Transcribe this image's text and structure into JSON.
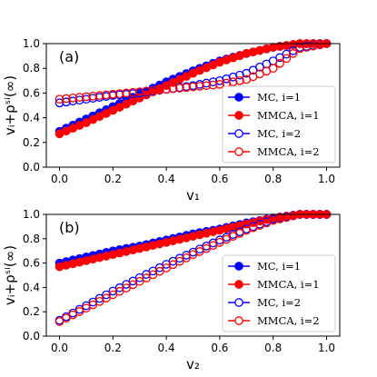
{
  "chart_data": [
    {
      "type": "scatter",
      "panel_label": "(a)",
      "xlabel": "v₁",
      "ylabel": "vᵢ+ρˢⁱ(∞)",
      "xlim": [
        0,
        1
      ],
      "ylim": [
        0,
        1
      ],
      "xticks": [
        "0.0",
        "0.2",
        "0.4",
        "0.6",
        "0.8",
        "1.0"
      ],
      "yticks": [
        "0.0",
        "0.2",
        "0.4",
        "0.6",
        "0.8",
        "1.0"
      ],
      "legend_position": "lower-right",
      "grid": false,
      "series": [
        {
          "name": "MC, i=1",
          "color": "#0000ff",
          "filled": true,
          "x": [
            0.0,
            0.1,
            0.2,
            0.3,
            0.4,
            0.5,
            0.6,
            0.7,
            0.8,
            0.9,
            1.0
          ],
          "y": [
            0.29,
            0.39,
            0.49,
            0.59,
            0.69,
            0.78,
            0.86,
            0.92,
            0.97,
            1.0,
            1.0
          ]
        },
        {
          "name": "MMCA, i=1",
          "color": "#ff0000",
          "filled": true,
          "x": [
            0.0,
            0.1,
            0.2,
            0.3,
            0.4,
            0.5,
            0.6,
            0.7,
            0.8,
            0.9,
            1.0
          ],
          "y": [
            0.27,
            0.36,
            0.46,
            0.56,
            0.66,
            0.76,
            0.85,
            0.92,
            0.97,
            1.0,
            1.0
          ]
        },
        {
          "name": "MC, i=2",
          "color": "#0000ff",
          "filled": false,
          "x": [
            0.0,
            0.1,
            0.2,
            0.3,
            0.4,
            0.5,
            0.6,
            0.7,
            0.8,
            0.9,
            1.0
          ],
          "y": [
            0.52,
            0.55,
            0.58,
            0.6,
            0.63,
            0.66,
            0.7,
            0.76,
            0.86,
            0.97,
            1.0
          ]
        },
        {
          "name": "MMCA, i=2",
          "color": "#ff0000",
          "filled": false,
          "x": [
            0.0,
            0.1,
            0.2,
            0.3,
            0.4,
            0.5,
            0.6,
            0.7,
            0.8,
            0.9,
            1.0
          ],
          "y": [
            0.55,
            0.57,
            0.59,
            0.61,
            0.63,
            0.65,
            0.67,
            0.71,
            0.8,
            0.96,
            1.0
          ]
        }
      ]
    },
    {
      "type": "scatter",
      "panel_label": "(b)",
      "xlabel": "v₂",
      "ylabel": "vᵢ+ρˢⁱ(∞)",
      "xlim": [
        0,
        1
      ],
      "ylim": [
        0,
        1
      ],
      "xticks": [
        "0.0",
        "0.2",
        "0.4",
        "0.6",
        "0.8",
        "1.0"
      ],
      "yticks": [
        "0.0",
        "0.2",
        "0.4",
        "0.6",
        "0.8",
        "1.0"
      ],
      "legend_position": "lower-right",
      "grid": false,
      "series": [
        {
          "name": "MC, i=1",
          "color": "#0000ff",
          "filled": true,
          "x": [
            0.0,
            0.1,
            0.2,
            0.3,
            0.4,
            0.5,
            0.6,
            0.7,
            0.8,
            0.9,
            1.0
          ],
          "y": [
            0.6,
            0.65,
            0.7,
            0.74,
            0.79,
            0.84,
            0.88,
            0.93,
            0.97,
            1.0,
            1.0
          ]
        },
        {
          "name": "MMCA, i=1",
          "color": "#ff0000",
          "filled": true,
          "x": [
            0.0,
            0.1,
            0.2,
            0.3,
            0.4,
            0.5,
            0.6,
            0.7,
            0.8,
            0.9,
            1.0
          ],
          "y": [
            0.57,
            0.62,
            0.67,
            0.72,
            0.77,
            0.82,
            0.87,
            0.92,
            0.97,
            1.0,
            1.0
          ]
        },
        {
          "name": "MC, i=2",
          "color": "#0000ff",
          "filled": false,
          "x": [
            0.0,
            0.1,
            0.2,
            0.3,
            0.4,
            0.5,
            0.6,
            0.7,
            0.8,
            0.9,
            1.0
          ],
          "y": [
            0.13,
            0.25,
            0.37,
            0.48,
            0.59,
            0.69,
            0.79,
            0.88,
            0.96,
            1.0,
            1.0
          ]
        },
        {
          "name": "MMCA, i=2",
          "color": "#ff0000",
          "filled": false,
          "x": [
            0.0,
            0.1,
            0.2,
            0.3,
            0.4,
            0.5,
            0.6,
            0.7,
            0.8,
            0.9,
            1.0
          ],
          "y": [
            0.12,
            0.23,
            0.34,
            0.45,
            0.56,
            0.67,
            0.77,
            0.87,
            0.95,
            1.0,
            1.0
          ]
        }
      ]
    }
  ]
}
